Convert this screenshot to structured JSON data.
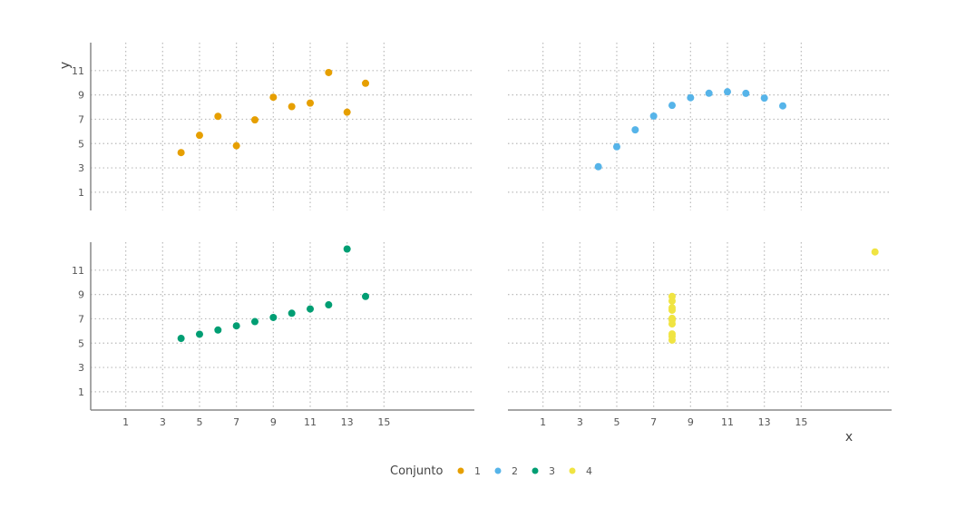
{
  "chart_data": {
    "type": "scatter",
    "title": "",
    "xlabel": "x",
    "ylabel": "y",
    "xlim": [
      -0.9,
      19.9
    ],
    "ylim": [
      -0.5,
      13.3
    ],
    "x_ticks": [
      1,
      3,
      5,
      7,
      9,
      11,
      13,
      15
    ],
    "y_ticks": [
      1,
      3,
      5,
      7,
      9,
      11
    ],
    "grid": true,
    "legend": {
      "title": "Conjunto",
      "position": "bottom",
      "entries": [
        "1",
        "2",
        "3",
        "4"
      ]
    },
    "colors": [
      "#E69F00",
      "#56B4E9",
      "#009E73",
      "#F0E442"
    ],
    "series": [
      {
        "name": "1",
        "x": [
          10,
          8,
          13,
          9,
          11,
          14,
          6,
          4,
          12,
          7,
          5
        ],
        "y": [
          8.04,
          6.95,
          7.58,
          8.81,
          8.33,
          9.96,
          7.24,
          4.26,
          10.84,
          4.82,
          5.68
        ]
      },
      {
        "name": "2",
        "x": [
          10,
          8,
          13,
          9,
          11,
          14,
          6,
          4,
          12,
          7,
          5
        ],
        "y": [
          9.14,
          8.14,
          8.74,
          8.77,
          9.26,
          8.1,
          6.13,
          3.1,
          9.13,
          7.26,
          4.74
        ]
      },
      {
        "name": "3",
        "x": [
          10,
          8,
          13,
          9,
          11,
          14,
          6,
          4,
          12,
          7,
          5
        ],
        "y": [
          7.46,
          6.77,
          12.74,
          7.11,
          7.81,
          8.84,
          6.08,
          5.39,
          8.15,
          6.42,
          5.73
        ]
      },
      {
        "name": "4",
        "x": [
          8,
          8,
          8,
          8,
          8,
          8,
          8,
          19,
          8,
          8,
          8
        ],
        "y": [
          6.58,
          5.76,
          7.71,
          8.84,
          8.47,
          7.04,
          5.25,
          12.5,
          5.56,
          7.91,
          6.89
        ]
      }
    ]
  }
}
